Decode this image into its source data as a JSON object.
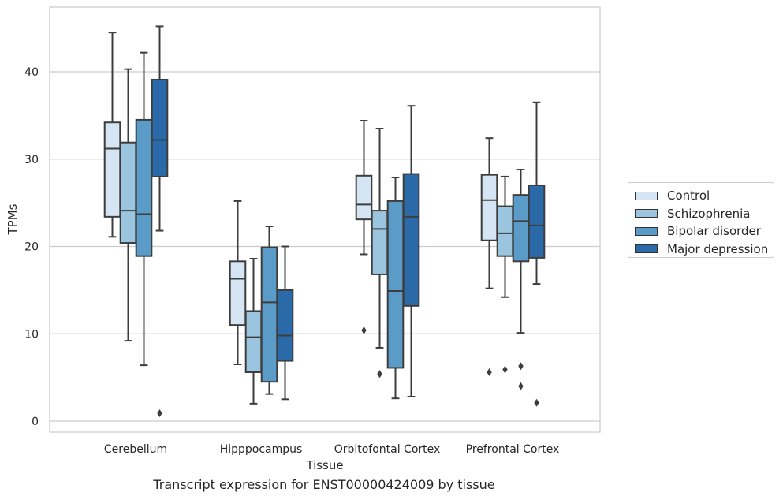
{
  "chart_data": {
    "type": "box",
    "caption": "Transcript expression for ENST00000424009 by tissue",
    "xlabel": "Tissue",
    "ylabel": "TPMs",
    "ylim": [
      -1.2,
      47.5
    ],
    "yticks": [
      0,
      10,
      20,
      30,
      40
    ],
    "grid": "horizontal",
    "legend_position": "right",
    "categories": [
      "Cerebellum",
      "Hipppocampus",
      "Orbitofontal Cortex",
      "Prefrontal Cortex"
    ],
    "series": [
      {
        "name": "Control",
        "color": "#d6e5f4",
        "boxes": [
          {
            "min": 21.1,
            "q1": 23.4,
            "median": 31.2,
            "q3": 34.2,
            "max": 44.5,
            "outliers": []
          },
          {
            "min": 6.5,
            "q1": 11.0,
            "median": 16.3,
            "q3": 18.3,
            "max": 25.2,
            "outliers": []
          },
          {
            "min": 19.1,
            "q1": 23.1,
            "median": 24.8,
            "q3": 28.1,
            "max": 34.4,
            "outliers": [
              10.4
            ]
          },
          {
            "min": 15.2,
            "q1": 20.7,
            "median": 25.3,
            "q3": 28.2,
            "max": 32.4,
            "outliers": [
              5.6
            ]
          }
        ]
      },
      {
        "name": "Schizophrenia",
        "color": "#9bc5df",
        "boxes": [
          {
            "min": 9.2,
            "q1": 20.4,
            "median": 24.1,
            "q3": 31.9,
            "max": 40.3,
            "outliers": []
          },
          {
            "min": 2.0,
            "q1": 5.6,
            "median": 9.6,
            "q3": 12.6,
            "max": 18.6,
            "outliers": []
          },
          {
            "min": 8.4,
            "q1": 16.8,
            "median": 22.0,
            "q3": 24.1,
            "max": 33.5,
            "outliers": [
              5.4
            ]
          },
          {
            "min": 14.2,
            "q1": 18.9,
            "median": 21.5,
            "q3": 24.6,
            "max": 28.0,
            "outliers": [
              5.9
            ]
          }
        ]
      },
      {
        "name": "Bipolar disorder",
        "color": "#5b9bc8",
        "boxes": [
          {
            "min": 6.4,
            "q1": 18.9,
            "median": 23.7,
            "q3": 34.5,
            "max": 42.2,
            "outliers": []
          },
          {
            "min": 3.1,
            "q1": 4.5,
            "median": 13.6,
            "q3": 19.9,
            "max": 22.3,
            "outliers": []
          },
          {
            "min": 2.6,
            "q1": 6.1,
            "median": 14.9,
            "q3": 25.2,
            "max": 27.9,
            "outliers": []
          },
          {
            "min": 10.1,
            "q1": 18.3,
            "median": 22.9,
            "q3": 25.9,
            "max": 28.8,
            "outliers": [
              6.3,
              4.0
            ]
          }
        ]
      },
      {
        "name": "Major depression",
        "color": "#2b6aa8",
        "boxes": [
          {
            "min": 21.8,
            "q1": 28.0,
            "median": 32.2,
            "q3": 39.1,
            "max": 45.2,
            "outliers": [
              0.9
            ]
          },
          {
            "min": 2.5,
            "q1": 6.9,
            "median": 9.8,
            "q3": 15.0,
            "max": 20.0,
            "outliers": []
          },
          {
            "min": 2.8,
            "q1": 13.2,
            "median": 23.4,
            "q3": 28.3,
            "max": 36.1,
            "outliers": []
          },
          {
            "min": 15.7,
            "q1": 18.7,
            "median": 22.4,
            "q3": 27.0,
            "max": 36.5,
            "outliers": [
              2.1
            ]
          }
        ]
      }
    ]
  }
}
